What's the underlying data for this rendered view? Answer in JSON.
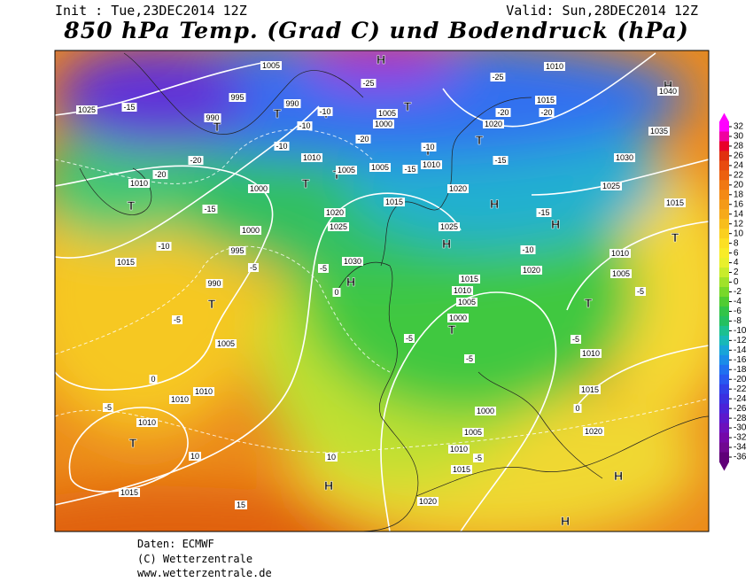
{
  "header": {
    "init": "Init : Tue,23DEC2014 12Z",
    "valid": "Valid: Sun,28DEC2014 12Z",
    "title": "850 hPa Temp. (Grad C) und Bodendruck (hPa)"
  },
  "map": {
    "pressure_centers": [
      "H",
      "T",
      "T",
      "T",
      "T",
      "T",
      "T",
      "T",
      "T",
      "T",
      "H",
      "H",
      "H",
      "H",
      "T",
      "T",
      "T",
      "T",
      "H",
      "H",
      "H",
      "H",
      "T"
    ],
    "isobar_labels": [
      "1005",
      "995",
      "990",
      "990",
      "1025",
      "1010",
      "1015",
      "1000",
      "1000",
      "995",
      "990",
      "1005",
      "1010",
      "1010",
      "1010",
      "1015",
      "1030",
      "1020",
      "1025",
      "1015",
      "1005",
      "1010",
      "1020",
      "1025",
      "1015",
      "1010",
      "1005",
      "1000",
      "1000",
      "1005",
      "1010",
      "1015",
      "1020",
      "1020",
      "1015",
      "1010",
      "1005",
      "1010",
      "1020",
      "1025",
      "1030",
      "1035",
      "1040",
      "1015",
      "1010",
      "1020",
      "1005",
      "1000",
      "1010",
      "1005",
      "1015"
    ],
    "isotherm_labels": [
      "-15",
      "-20",
      "-20",
      "-15",
      "-10",
      "-5",
      "-5",
      "0",
      "-5",
      "10",
      "10",
      "15",
      "-5",
      "0",
      "-10",
      "-10",
      "-10",
      "-25",
      "-25",
      "-20",
      "-20",
      "-15",
      "-15",
      "-10",
      "-15",
      "-10",
      "-5",
      "-5",
      "-5",
      "0",
      "-5",
      "-5",
      "-20"
    ]
  },
  "legend": {
    "ticks": [
      32,
      30,
      28,
      26,
      24,
      22,
      20,
      18,
      16,
      14,
      12,
      10,
      8,
      6,
      4,
      2,
      0,
      -2,
      -4,
      -6,
      -8,
      -10,
      -12,
      -14,
      -16,
      -18,
      -20,
      -22,
      -24,
      -26,
      -28,
      -30,
      -32,
      -34,
      -36
    ],
    "colors": [
      "#ff00ff",
      "#f000a0",
      "#e8002a",
      "#e03010",
      "#e84a10",
      "#ec6010",
      "#f07812",
      "#f48a14",
      "#f49a18",
      "#f6aa1a",
      "#f8be1c",
      "#fad020",
      "#fce024",
      "#f8ec28",
      "#e8f02c",
      "#c8ec2c",
      "#a0e22a",
      "#78d82a",
      "#50cc32",
      "#32c448",
      "#24c060",
      "#1cc090",
      "#18b8b8",
      "#18a4d8",
      "#1a8ce8",
      "#2070f0",
      "#2858f0",
      "#3040e8",
      "#3a30e0",
      "#4a22d8",
      "#5c18cc",
      "#6c10bc",
      "#7408a8",
      "#700890",
      "#600078"
    ]
  },
  "footer": {
    "source": "Daten: ECMWF",
    "copyright": "(C) Wetterzentrale",
    "url": "www.wetterzentrale.de"
  }
}
